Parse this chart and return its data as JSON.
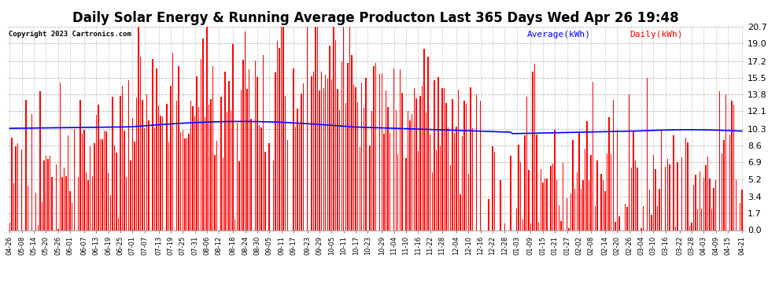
{
  "title": "Daily Solar Energy & Running Average Producton Last 365 Days Wed Apr 26 19:48",
  "copyright": "Copyright 2023 Cartronics.com",
  "legend_avg": "Average(kWh)",
  "legend_daily": "Daily(kWh)",
  "yticks": [
    0.0,
    1.7,
    3.4,
    5.2,
    6.9,
    8.6,
    10.3,
    12.1,
    13.8,
    15.5,
    17.2,
    19.0,
    20.7
  ],
  "ymax": 20.7,
  "bar_color": "#ff0000",
  "avg_line_color": "#0000ff",
  "background_color": "#ffffff",
  "grid_color": "#b0b0b0",
  "title_fontsize": 12,
  "x_labels": [
    "04-26",
    "05-08",
    "05-14",
    "05-20",
    "05-26",
    "06-01",
    "06-07",
    "06-13",
    "06-19",
    "06-25",
    "07-01",
    "07-07",
    "07-13",
    "07-19",
    "07-25",
    "07-31",
    "08-06",
    "08-12",
    "08-18",
    "08-24",
    "08-30",
    "09-05",
    "09-11",
    "09-17",
    "09-23",
    "09-29",
    "10-05",
    "10-11",
    "10-17",
    "10-23",
    "10-29",
    "11-04",
    "11-10",
    "11-16",
    "11-22",
    "11-28",
    "12-04",
    "12-10",
    "12-16",
    "12-22",
    "12-28",
    "01-03",
    "01-09",
    "01-15",
    "01-21",
    "01-27",
    "02-02",
    "02-08",
    "02-14",
    "02-20",
    "02-26",
    "03-04",
    "03-10",
    "03-16",
    "03-22",
    "03-28",
    "04-03",
    "04-09",
    "04-15",
    "04-21"
  ],
  "n_bars": 365
}
